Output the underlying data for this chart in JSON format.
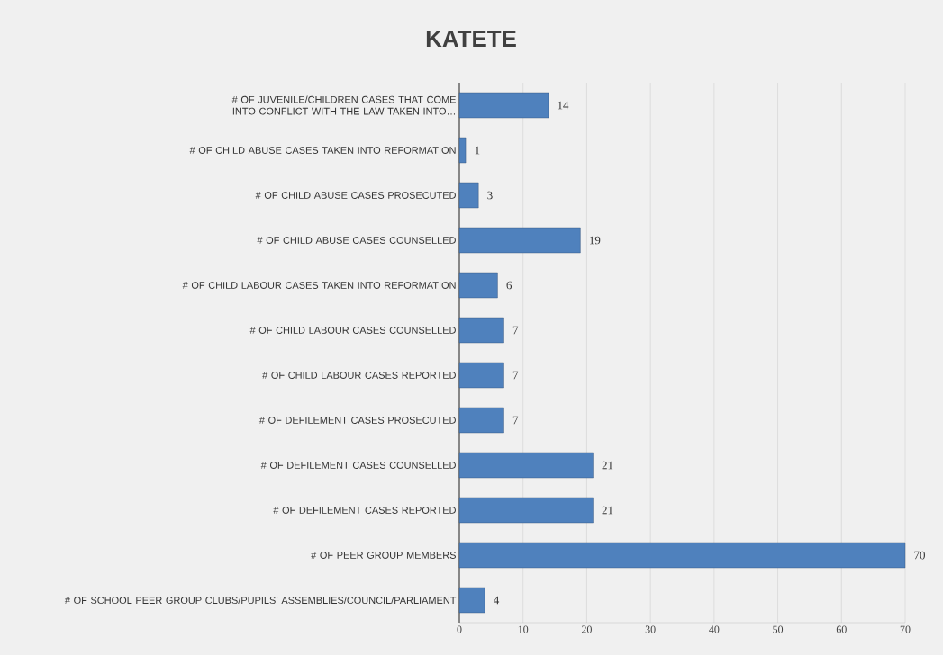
{
  "chart_data": {
    "type": "bar",
    "orientation": "horizontal",
    "title": "KATETE",
    "categories": [
      "# OF JUVENILE/CHILDREN CASES THAT COME INTO CONFLICT WITH THE LAW TAKEN INTO…",
      "# OF CHILD ABUSE CASES TAKEN  INTO REFORMATION",
      "# OF CHILD ABUSE CASES PROSECUTED",
      "# OF CHILD ABUSE CASES COUNSELLED",
      "# OF CHILD LABOUR CASES TAKEN INTO REFORMATION",
      "# OF CHILD LABOUR CASES COUNSELLED",
      "# OF CHILD LABOUR CASES REPORTED",
      "# OF DEFILEMENT CASES PROSECUTED",
      "# OF DEFILEMENT CASES COUNSELLED",
      "# OF DEFILEMENT CASES REPORTED",
      "# OF PEER GROUP MEMBERS",
      "# OF SCHOOL PEER GROUP CLUBS/PUPILS’ ASSEMBLIES/COUNCIL/PARLIAMENT"
    ],
    "values": [
      14,
      1,
      3,
      19,
      6,
      7,
      7,
      7,
      21,
      21,
      70,
      4
    ],
    "color": "#4f81bd",
    "xlim": [
      0,
      70
    ],
    "xticks": [
      0,
      10,
      20,
      30,
      40,
      50,
      60,
      70
    ],
    "grid": "x",
    "data_labels": true
  }
}
